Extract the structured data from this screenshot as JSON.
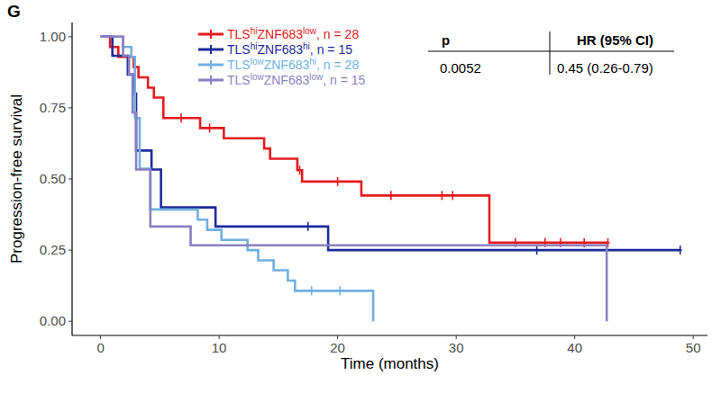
{
  "chart_data": {
    "type": "step",
    "panel_label": "G",
    "x_label": "Time (months)",
    "y_label": "Progression-free survival",
    "xlim": [
      -2.4,
      51.2
    ],
    "xticks": [
      0,
      10,
      20,
      30,
      40,
      50
    ],
    "ylim": [
      -0.05,
      1.05
    ],
    "yticks": [
      {
        "value": 0,
        "label": "0.00"
      },
      0.25,
      {
        "value": 0.5,
        "label": "0.50"
      },
      0.75,
      {
        "value": 1,
        "label": "1.00"
      }
    ],
    "grid": false,
    "legend": "top-left",
    "marker": "plus",
    "series": [
      {
        "name": "TLShiZNF683low, n = 28",
        "color": "#e41a1c",
        "x": [
          0,
          0.8,
          1.5,
          2.8,
          3.2,
          4.0,
          4.5,
          5.3,
          8.4,
          10.4,
          13.8,
          14.3,
          16.6,
          17.0,
          22.0,
          32.8,
          42.8
        ],
        "values": [
          1.0,
          0.964,
          0.929,
          0.893,
          0.857,
          0.821,
          0.786,
          0.714,
          0.679,
          0.643,
          0.607,
          0.571,
          0.531,
          0.491,
          0.442,
          0.276,
          0.276
        ],
        "censored": {
          "x": [
            6.8,
            9.2,
            16.8,
            20.0,
            24.5,
            28.8,
            29.7,
            35.0,
            37.5,
            38.8,
            40.8,
            42.8
          ],
          "values": [
            0.714,
            0.679,
            0.531,
            0.491,
            0.442,
            0.442,
            0.442,
            0.276,
            0.276,
            0.276,
            0.276,
            0.276
          ]
        }
      },
      {
        "name": "TLShiZNF683hi, n = 15",
        "color": "#1c2a9c",
        "x": [
          0,
          1.0,
          2.3,
          2.8,
          3.0,
          4.3,
          5.1,
          9.7,
          19.2,
          48.9
        ],
        "values": [
          1.0,
          0.933,
          0.867,
          0.8,
          0.6,
          0.533,
          0.4,
          0.333,
          0.25,
          0.25
        ],
        "censored": {
          "x": [
            17.5,
            36.8,
            48.9
          ],
          "values": [
            0.333,
            0.25,
            0.25
          ]
        }
      },
      {
        "name": "TLSlowZNF683hi, n = 28",
        "color": "#6fb0e0",
        "x": [
          0,
          1.9,
          2.6,
          2.9,
          3.3,
          4.2,
          8.2,
          9.0,
          10.2,
          12.4,
          13.3,
          14.6,
          15.8,
          16.4,
          23.0
        ],
        "values": [
          1.0,
          0.964,
          0.929,
          0.714,
          0.536,
          0.393,
          0.357,
          0.321,
          0.286,
          0.25,
          0.214,
          0.179,
          0.143,
          0.107,
          0.0
        ],
        "censored": {
          "x": [
            17.8,
            20.2
          ],
          "values": [
            0.107,
            0.107
          ]
        }
      },
      {
        "name": "TLSlowZNF683low, n = 15",
        "color": "#8a7fc2",
        "x": [
          0,
          1.9,
          2.4,
          2.7,
          3.0,
          4.2,
          7.6,
          42.7
        ],
        "values": [
          1.0,
          0.933,
          0.867,
          0.733,
          0.533,
          0.333,
          0.267,
          0.0
        ],
        "censored": {
          "x": [],
          "values": []
        }
      }
    ],
    "annotation": {
      "headers": [
        "p",
        "HR (95% CI)"
      ],
      "values": [
        "0.0052",
        "0.45 (0.26-0.79)"
      ]
    }
  }
}
